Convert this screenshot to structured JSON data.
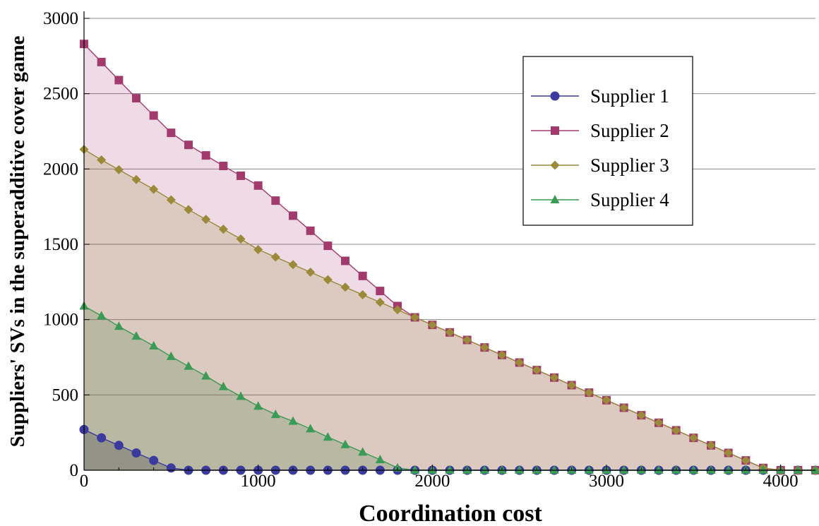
{
  "chart_data": {
    "type": "area",
    "title": "",
    "xlabel": "Coordination cost",
    "ylabel": "Suppliers' SVs in the superadditive cover game",
    "xlim": [
      0,
      4200
    ],
    "ylim": [
      0,
      3000
    ],
    "x_ticks": [
      "0",
      "1000",
      "2000",
      "3000",
      "4000"
    ],
    "y_ticks": [
      "0",
      "500",
      "1000",
      "1500",
      "2000",
      "2500",
      "3000"
    ],
    "grid": "horizontal",
    "legend_position": "top-right",
    "x": [
      0,
      100,
      200,
      300,
      400,
      500,
      600,
      700,
      800,
      900,
      1000,
      1100,
      1200,
      1300,
      1400,
      1500,
      1600,
      1700,
      1800,
      1900,
      2000,
      2100,
      2200,
      2300,
      2400,
      2500,
      2600,
      2700,
      2800,
      2900,
      3000,
      3100,
      3200,
      3300,
      3400,
      3500,
      3600,
      3700,
      3800,
      3900,
      4000,
      4100,
      4200
    ],
    "series": [
      {
        "name": "Supplier 1",
        "color": "#3b3b9e",
        "fill": "rgba(90,90,90,0.40)",
        "marker": "circle",
        "values": [
          270,
          215,
          165,
          115,
          65,
          15,
          0,
          0,
          0,
          0,
          0,
          0,
          0,
          0,
          0,
          0,
          0,
          0,
          0,
          0,
          0,
          0,
          0,
          0,
          0,
          0,
          0,
          0,
          0,
          0,
          0,
          0,
          0,
          0,
          0,
          0,
          0,
          0,
          0,
          0,
          0,
          0,
          0
        ]
      },
      {
        "name": "Supplier 2",
        "color": "#a33a6e",
        "fill": "rgba(160,55,110,0.18)",
        "marker": "square",
        "values": [
          2830,
          2710,
          2590,
          2470,
          2355,
          2240,
          2160,
          2090,
          2020,
          1955,
          1890,
          1790,
          1690,
          1590,
          1490,
          1390,
          1290,
          1190,
          1090,
          1015,
          965,
          915,
          865,
          815,
          765,
          715,
          665,
          615,
          565,
          515,
          465,
          415,
          365,
          315,
          265,
          215,
          165,
          115,
          65,
          15,
          0,
          0,
          0
        ]
      },
      {
        "name": "Supplier 3",
        "color": "#9a8a3a",
        "fill": "rgba(150,130,40,0.20)",
        "marker": "diamond",
        "values": [
          2130,
          2060,
          1995,
          1930,
          1865,
          1795,
          1730,
          1665,
          1600,
          1535,
          1465,
          1415,
          1365,
          1315,
          1265,
          1215,
          1165,
          1115,
          1065,
          1015,
          965,
          915,
          865,
          815,
          765,
          715,
          665,
          615,
          565,
          515,
          465,
          415,
          365,
          315,
          265,
          215,
          165,
          115,
          65,
          15,
          0,
          0,
          0
        ]
      },
      {
        "name": "Supplier 4",
        "color": "#3b9a55",
        "fill": "rgba(80,140,80,0.25)",
        "marker": "triangle",
        "values": [
          1090,
          1025,
          955,
          890,
          825,
          755,
          690,
          625,
          555,
          490,
          425,
          370,
          325,
          275,
          220,
          170,
          120,
          70,
          15,
          0,
          0,
          0,
          0,
          0,
          0,
          0,
          0,
          0,
          0,
          0,
          0,
          0,
          0,
          0,
          0,
          0,
          0,
          0,
          0,
          0,
          0,
          0,
          0
        ]
      }
    ]
  }
}
